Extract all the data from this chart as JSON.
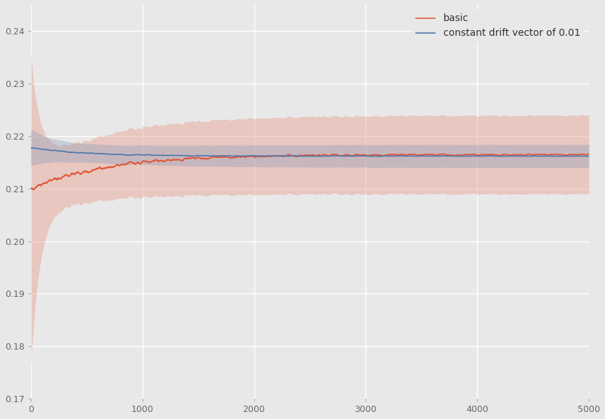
{
  "title": "",
  "xlim": [
    0,
    5000
  ],
  "ylim": [
    0.17,
    0.245
  ],
  "yticks": [
    0.17,
    0.18,
    0.19,
    0.2,
    0.21,
    0.22,
    0.23,
    0.24
  ],
  "xticks": [
    0,
    1000,
    2000,
    3000,
    4000,
    5000
  ],
  "background_color": "#e8e8e8",
  "grid_color": "#ffffff",
  "line1_color": "#e05a3a",
  "line2_color": "#4b78a8",
  "fill1_color": "#e8a090",
  "fill2_color": "#8899bb",
  "fill1_alpha": 0.45,
  "fill2_alpha": 0.35,
  "legend_labels": [
    "basic",
    "constant drift vector of 0.01"
  ],
  "n_points": 5001,
  "seed": 42,
  "line_width": 1.2,
  "figsize": [
    8.61,
    5.97
  ],
  "dpi": 100
}
